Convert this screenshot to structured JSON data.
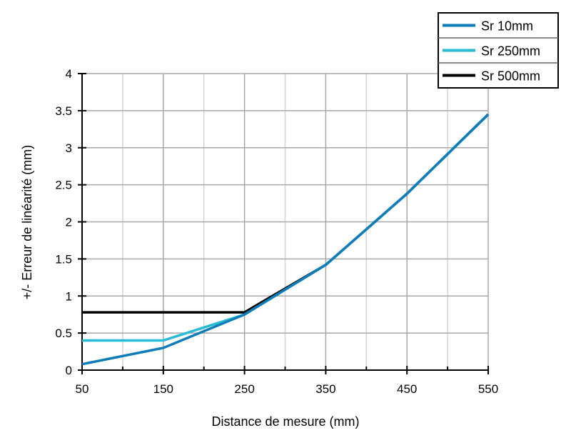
{
  "chart_data": {
    "type": "line",
    "title": "",
    "xlabel": "Distance de mesure (mm)",
    "ylabel": "+/- Erreur de linéarité (mm)",
    "xlim": [
      50,
      550
    ],
    "ylim": [
      0,
      4
    ],
    "xticks": [
      50,
      150,
      250,
      350,
      450,
      550
    ],
    "xtick_labels": [
      "50",
      "150",
      "250",
      "350",
      "450",
      "550"
    ],
    "xminor": [
      100,
      200,
      300,
      400,
      500
    ],
    "yticks": [
      0,
      0.5,
      1,
      1.5,
      2,
      2.5,
      3,
      3.5,
      4
    ],
    "ytick_labels": [
      "0",
      "0.5",
      "1",
      "1.5",
      "2",
      "2.5",
      "3",
      "3.5",
      "4"
    ],
    "grid": true,
    "legend_position": "top-right",
    "series": [
      {
        "name": "Sr 10mm",
        "color": "#0f7db8",
        "x": [
          50,
          150,
          250,
          350,
          450,
          550
        ],
        "y": [
          0.08,
          0.3,
          0.75,
          1.42,
          2.38,
          3.45
        ]
      },
      {
        "name": "Sr 250mm",
        "color": "#2bbad3",
        "x": [
          50,
          150,
          250,
          350,
          450,
          550
        ],
        "y": [
          0.4,
          0.4,
          0.75,
          1.42,
          2.38,
          3.45
        ]
      },
      {
        "name": "Sr 500mm",
        "color": "#000000",
        "x": [
          50,
          250,
          350,
          450,
          550
        ],
        "y": [
          0.78,
          0.78,
          1.42,
          2.38,
          3.45
        ]
      }
    ]
  }
}
